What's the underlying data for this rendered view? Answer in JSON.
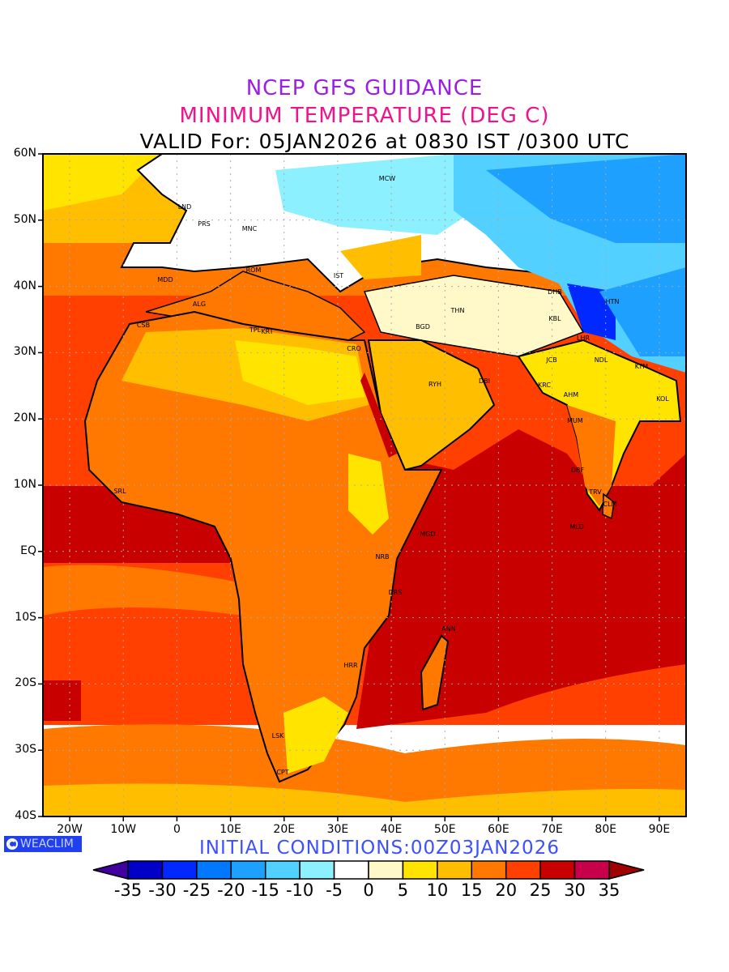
{
  "titles": {
    "line1": "NCEP GFS GUIDANCE",
    "line2": "MINIMUM TEMPERATURE (DEG C)",
    "line3": "VALID For: 05JAN2026 at 0830 IST /0300 UTC"
  },
  "axes": {
    "lat_ticks": [
      "60N",
      "50N",
      "40N",
      "30N",
      "20N",
      "10N",
      "EQ",
      "10S",
      "20S",
      "30S",
      "40S"
    ],
    "lon_ticks": [
      "20W",
      "10W",
      "0",
      "10E",
      "20E",
      "30E",
      "40E",
      "50E",
      "60E",
      "70E",
      "80E",
      "90E"
    ],
    "lat_range": [
      -40,
      60
    ],
    "lon_range": [
      -25,
      95
    ]
  },
  "logo": "WEACLIM",
  "initial_conditions": "INITIAL  CONDITIONS:00Z03JAN2026",
  "colorbar": {
    "labels": [
      "-35",
      "-30",
      "-25",
      "-20",
      "-15",
      "-10",
      "-5",
      "0",
      "5",
      "10",
      "15",
      "20",
      "25",
      "30",
      "35"
    ],
    "colors": [
      "#0000c8",
      "#0028ff",
      "#0078ff",
      "#1ea0ff",
      "#52d0ff",
      "#8cf0ff",
      "#ffffff",
      "#fff8c8",
      "#ffe400",
      "#ffbe00",
      "#ff7800",
      "#ff4000",
      "#c80000",
      "#c8004c"
    ],
    "under_color": "#4000a0",
    "over_color": "#a00000"
  },
  "stations": [
    "LND",
    "PRS",
    "MNC",
    "MCW",
    "ROM",
    "IST",
    "MDD",
    "ALG",
    "CSB",
    "TPL",
    "KRT",
    "CRO",
    "THN",
    "BGD",
    "RYH",
    "DHB",
    "HTN",
    "KBL",
    "LHR",
    "JCB",
    "NDL",
    "KTM",
    "DBI",
    "KRC",
    "AHM",
    "MUM",
    "KOL",
    "DBF",
    "TRV",
    "CLM",
    "MLD",
    "SRL",
    "MGD",
    "NRB",
    "DRS",
    "ANN",
    "HRR",
    "LSK",
    "CPT"
  ]
}
